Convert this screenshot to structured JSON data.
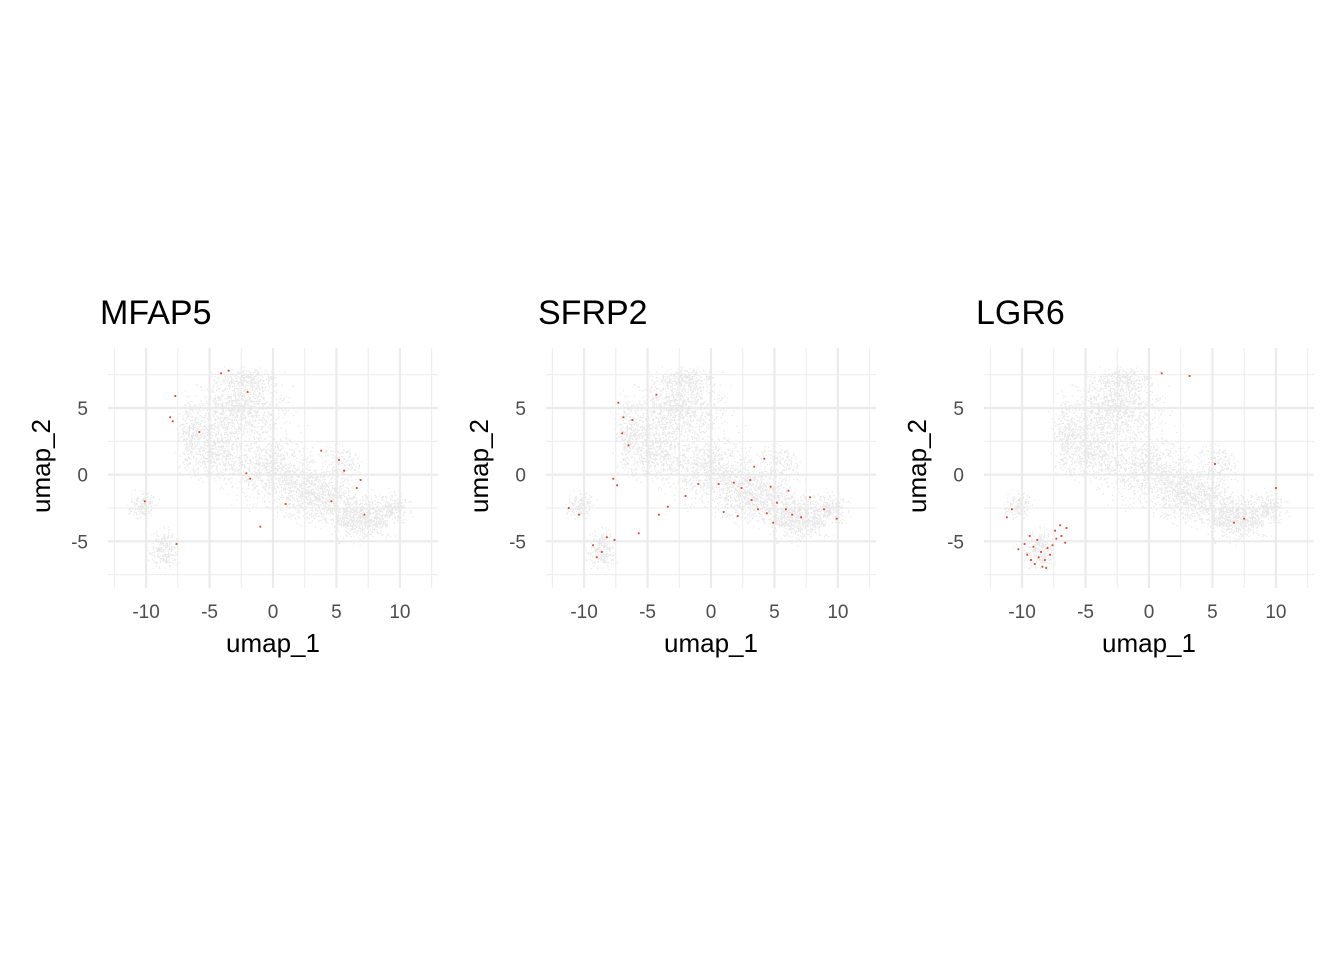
{
  "figure": {
    "background": "#ffffff",
    "gridline_color": "#ebebeb",
    "cell_color": "#e6e6e6",
    "expression_color": "#d9421f"
  },
  "chart_data": [
    {
      "type": "scatter",
      "title": "MFAP5",
      "xlabel": "umap_1",
      "ylabel": "umap_2",
      "xlim": [
        -13,
        13
      ],
      "ylim": [
        -8.5,
        9.5
      ],
      "x_ticks": [
        -10,
        -5,
        0,
        5,
        10
      ],
      "x_tick_labels": [
        "-10",
        "-5",
        "0",
        "5",
        "10"
      ],
      "y_ticks": [
        -5,
        0,
        5
      ],
      "y_tick_labels": [
        "-5",
        "0",
        "5"
      ],
      "grid": true,
      "expressed_points": [
        [
          -7.9,
          4.0
        ],
        [
          -7.7,
          5.9
        ],
        [
          -8.1,
          4.3
        ],
        [
          -4.1,
          7.6
        ],
        [
          -3.5,
          7.8
        ],
        [
          -2.0,
          6.2
        ],
        [
          -2.1,
          0.1
        ],
        [
          -1.8,
          -0.3
        ],
        [
          3.8,
          1.8
        ],
        [
          5.2,
          1.1
        ],
        [
          5.6,
          0.3
        ],
        [
          6.9,
          -0.4
        ],
        [
          6.6,
          -1.0
        ],
        [
          4.6,
          -2.0
        ],
        [
          7.2,
          -3.0
        ],
        [
          -7.6,
          -5.2
        ],
        [
          -10.1,
          -2.0
        ],
        [
          1.0,
          -2.2
        ],
        [
          -1.0,
          -3.9
        ],
        [
          -5.8,
          3.2
        ]
      ]
    },
    {
      "type": "scatter",
      "title": "SFRP2",
      "xlabel": "umap_1",
      "ylabel": "umap_2",
      "xlim": [
        -13,
        13
      ],
      "ylim": [
        -8.5,
        9.5
      ],
      "x_ticks": [
        -10,
        -5,
        0,
        5,
        10
      ],
      "x_tick_labels": [
        "-10",
        "-5",
        "0",
        "5",
        "10"
      ],
      "y_ticks": [
        -5,
        0,
        5
      ],
      "y_tick_labels": [
        "-5",
        "0",
        "5"
      ],
      "grid": true,
      "expressed_points": [
        [
          -6.9,
          4.3
        ],
        [
          -7.3,
          5.4
        ],
        [
          -7.0,
          3.1
        ],
        [
          -6.2,
          4.1
        ],
        [
          -6.5,
          2.2
        ],
        [
          -7.7,
          -0.3
        ],
        [
          -7.4,
          -0.8
        ],
        [
          -9.3,
          -5.3
        ],
        [
          -9.0,
          -6.2
        ],
        [
          -8.6,
          -5.8
        ],
        [
          -8.2,
          -4.7
        ],
        [
          -7.6,
          -4.9
        ],
        [
          -11.2,
          -2.5
        ],
        [
          -10.4,
          -3.0
        ],
        [
          0.6,
          -0.7
        ],
        [
          1.8,
          -0.6
        ],
        [
          2.4,
          -1.0
        ],
        [
          3.1,
          -0.4
        ],
        [
          3.4,
          0.6
        ],
        [
          4.2,
          1.2
        ],
        [
          4.7,
          -0.9
        ],
        [
          5.2,
          -2.1
        ],
        [
          5.9,
          -2.6
        ],
        [
          6.4,
          -3.0
        ],
        [
          7.1,
          -3.2
        ],
        [
          4.9,
          -3.6
        ],
        [
          3.2,
          -1.9
        ],
        [
          -2.0,
          -1.6
        ],
        [
          -3.4,
          -2.4
        ],
        [
          9.9,
          -3.3
        ],
        [
          8.9,
          -2.6
        ],
        [
          7.8,
          -1.7
        ],
        [
          1.0,
          -2.8
        ],
        [
          2.1,
          -3.1
        ],
        [
          -1.0,
          -0.7
        ],
        [
          4.4,
          -2.9
        ],
        [
          6.1,
          -1.2
        ],
        [
          3.7,
          -2.6
        ],
        [
          -4.3,
          6.0
        ],
        [
          -4.1,
          -3.0
        ],
        [
          -5.7,
          -4.4
        ]
      ]
    },
    {
      "type": "scatter",
      "title": "LGR6",
      "xlabel": "umap_1",
      "ylabel": "umap_2",
      "xlim": [
        -13,
        13
      ],
      "ylim": [
        -8.5,
        9.5
      ],
      "x_ticks": [
        -10,
        -5,
        0,
        5,
        10
      ],
      "x_tick_labels": [
        "-10",
        "-5",
        "0",
        "5",
        "10"
      ],
      "y_ticks": [
        -5,
        0,
        5
      ],
      "y_tick_labels": [
        "-5",
        "0",
        "5"
      ],
      "grid": true,
      "expressed_points": [
        [
          -9.6,
          -6.0
        ],
        [
          -9.3,
          -6.4
        ],
        [
          -9.0,
          -6.7
        ],
        [
          -8.7,
          -6.2
        ],
        [
          -8.4,
          -6.9
        ],
        [
          -8.1,
          -7.0
        ],
        [
          -8.5,
          -5.8
        ],
        [
          -8.0,
          -5.5
        ],
        [
          -7.6,
          -5.3
        ],
        [
          -7.3,
          -4.8
        ],
        [
          -6.9,
          -4.6
        ],
        [
          -6.6,
          -5.1
        ],
        [
          -7.0,
          -3.8
        ],
        [
          -7.4,
          -4.2
        ],
        [
          -9.8,
          -5.2
        ],
        [
          -10.3,
          -5.6
        ],
        [
          -8.8,
          -4.9
        ],
        [
          -8.2,
          -6.4
        ],
        [
          -7.8,
          -6.0
        ],
        [
          -9.1,
          -5.4
        ],
        [
          -6.5,
          -4.0
        ],
        [
          -9.4,
          -4.6
        ],
        [
          -10.8,
          -2.6
        ],
        [
          -11.2,
          -3.2
        ],
        [
          6.7,
          -3.6
        ],
        [
          7.5,
          -3.3
        ],
        [
          10.0,
          -1.0
        ],
        [
          3.2,
          7.4
        ],
        [
          1.0,
          7.6
        ],
        [
          5.2,
          0.8
        ]
      ]
    }
  ]
}
